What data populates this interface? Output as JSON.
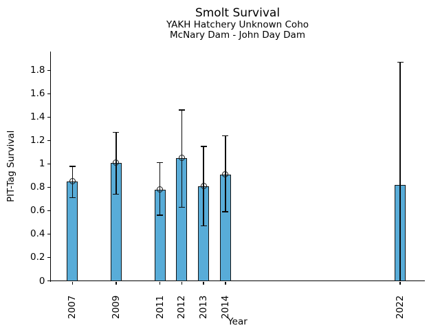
{
  "chart_data": {
    "type": "bar",
    "title": "Smolt Survival",
    "subtitle": [
      "YAKH Hatchery Unknown Coho",
      "McNary Dam - John Day Dam"
    ],
    "xlabel": "Year",
    "ylabel": "PIT-Tag Survival",
    "x": [
      2007,
      2009,
      2011,
      2012,
      2013,
      2014,
      2022
    ],
    "values": [
      0.85,
      1.01,
      0.78,
      1.05,
      0.81,
      0.91,
      0.82
    ],
    "error_low": [
      0.71,
      0.74,
      0.56,
      0.63,
      0.47,
      0.59,
      0.0
    ],
    "error_high": [
      0.98,
      1.27,
      1.01,
      1.46,
      1.15,
      1.24,
      1.87
    ],
    "markers": [
      true,
      true,
      true,
      true,
      true,
      true,
      false
    ],
    "xlim": [
      2005.98,
      2023.13
    ],
    "ylim": [
      0,
      1.96
    ],
    "yticks": [
      0,
      0.2,
      0.4,
      0.6,
      0.8,
      1.0,
      1.2,
      1.4,
      1.6,
      1.8
    ],
    "ytick_labels": [
      "0",
      "0.2",
      "0.4",
      "0.6",
      "0.8",
      "1",
      "1.2",
      "1.4",
      "1.6",
      "1.8"
    ],
    "bar_color": "#58ACD8",
    "bar_edge_color": "#111111",
    "error_color": "#0a0a0a",
    "grid": false,
    "legend": null
  }
}
